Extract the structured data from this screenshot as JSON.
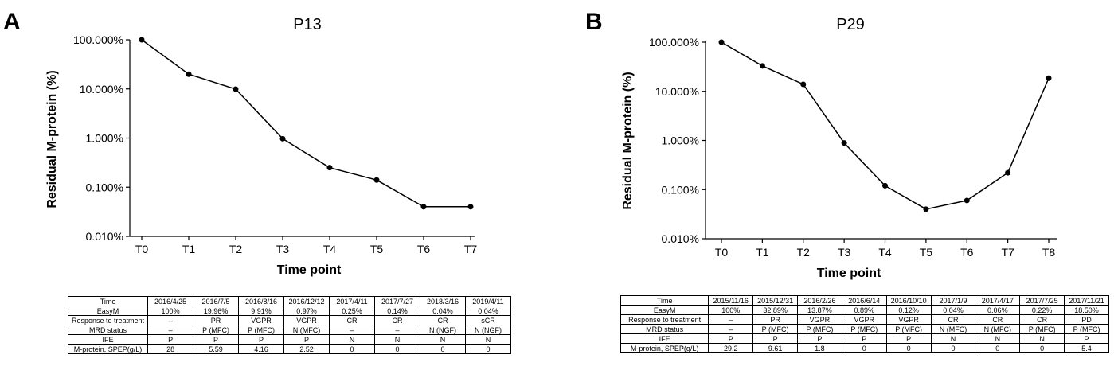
{
  "panels": [
    {
      "letter": "A",
      "chart_data": {
        "type": "line",
        "title": "P13",
        "xlabel": "Time point",
        "ylabel": "Residual M-protein (%)",
        "yscale": "log",
        "ylim": [
          0.01,
          100
        ],
        "yticks": [
          "100.000%",
          "10.000%",
          "1.000%",
          "0.100%",
          "0.010%"
        ],
        "categories": [
          "T0",
          "T1",
          "T2",
          "T3",
          "T4",
          "T5",
          "T6",
          "T7"
        ],
        "values": [
          100,
          19.96,
          9.91,
          0.97,
          0.25,
          0.14,
          0.04,
          0.04
        ],
        "grid": false,
        "legend": "none"
      },
      "table": {
        "rows": [
          [
            "Time",
            "2016/4/25",
            "2016/7/5",
            "2016/8/16",
            "2016/12/12",
            "2017/4/11",
            "2017/7/27",
            "2018/3/16",
            "2019/4/11"
          ],
          [
            "EasyM",
            "100%",
            "19.96%",
            "9.91%",
            "0.97%",
            "0.25%",
            "0.14%",
            "0.04%",
            "0.04%"
          ],
          [
            "Response to treatment",
            "–",
            "PR",
            "VGPR",
            "VGPR",
            "CR",
            "CR",
            "CR",
            "sCR"
          ],
          [
            "MRD status",
            "–",
            "P (MFC)",
            "P (MFC)",
            "N (MFC)",
            "–",
            "–",
            "N (NGF)",
            "N (NGF)"
          ],
          [
            "IFE",
            "P",
            "P",
            "P",
            "P",
            "N",
            "N",
            "N",
            "N"
          ],
          [
            "M-protein, SPEP(g/L)",
            "28",
            "5.59",
            "4.16",
            "2.52",
            "0",
            "0",
            "0",
            "0"
          ]
        ]
      }
    },
    {
      "letter": "B",
      "chart_data": {
        "type": "line",
        "title": "P29",
        "xlabel": "Time point",
        "ylabel": "Residual M-protein (%)",
        "yscale": "log",
        "ylim": [
          0.01,
          100
        ],
        "yticks": [
          "100.000%",
          "10.000%",
          "1.000%",
          "0.100%",
          "0.010%"
        ],
        "categories": [
          "T0",
          "T1",
          "T2",
          "T3",
          "T4",
          "T5",
          "T6",
          "T7",
          "T8"
        ],
        "values": [
          100,
          32.89,
          13.87,
          0.89,
          0.12,
          0.04,
          0.06,
          0.22,
          18.5
        ],
        "grid": false,
        "legend": "none"
      },
      "table": {
        "rows": [
          [
            "Time",
            "2015/11/16",
            "2015/12/31",
            "2016/2/26",
            "2016/6/14",
            "2016/10/10",
            "2017/1/9",
            "2017/4/17",
            "2017/7/25",
            "2017/11/21"
          ],
          [
            "EasyM",
            "100%",
            "32.89%",
            "13.87%",
            "0.89%",
            "0.12%",
            "0.04%",
            "0.06%",
            "0.22%",
            "18.50%"
          ],
          [
            "Response to treatment",
            "–",
            "PR",
            "VGPR",
            "VGPR",
            "VGPR",
            "CR",
            "CR",
            "CR",
            "PD"
          ],
          [
            "MRD status",
            "–",
            "P (MFC)",
            "P (MFC)",
            "P (MFC)",
            "P (MFC)",
            "N (MFC)",
            "N (MFC)",
            "P (MFC)",
            "P (MFC)"
          ],
          [
            "IFE",
            "P",
            "P",
            "P",
            "P",
            "P",
            "N",
            "N",
            "N",
            "P"
          ],
          [
            "M-protein, SPEP(g/L)",
            "29.2",
            "9.61",
            "1.8",
            "0",
            "0",
            "0",
            "0",
            "0",
            "5.4"
          ]
        ]
      }
    }
  ]
}
